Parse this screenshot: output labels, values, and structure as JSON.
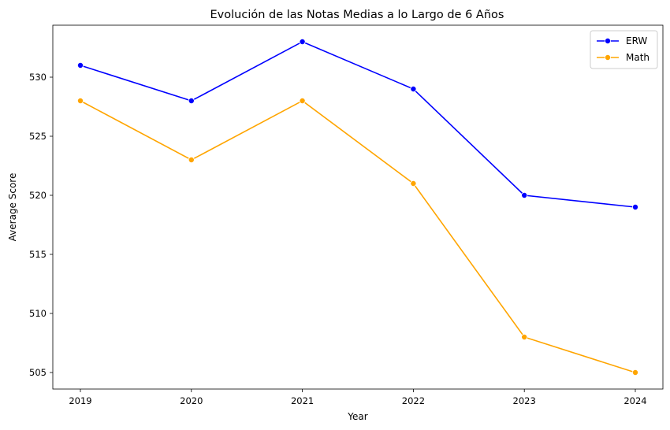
{
  "chart_data": {
    "type": "line",
    "title": "Evolución de las Notas Medias a lo Largo de 6 Años",
    "xlabel": "Year",
    "ylabel": "Average Score",
    "categories": [
      "2019",
      "2020",
      "2021",
      "2022",
      "2023",
      "2024"
    ],
    "ylim": [
      503.6,
      534.4
    ],
    "yticks": [
      505,
      510,
      515,
      520,
      525,
      530
    ],
    "grid": false,
    "legend_position": "top-right",
    "series": [
      {
        "name": "ERW",
        "color": "#0000ff",
        "values": [
          531,
          528,
          533,
          529,
          520,
          519
        ]
      },
      {
        "name": "Math",
        "color": "#ffa500",
        "values": [
          528,
          523,
          528,
          521,
          508,
          505
        ]
      }
    ]
  }
}
